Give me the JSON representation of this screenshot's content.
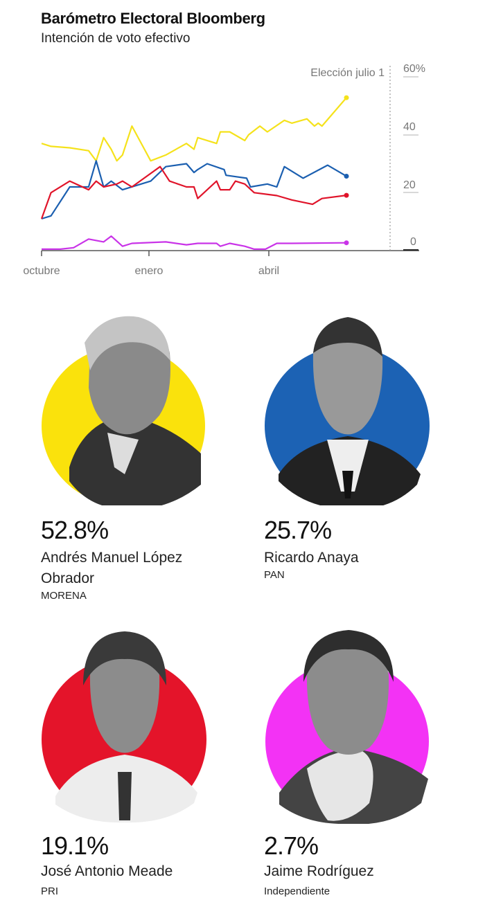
{
  "header": {
    "title": "Barómetro Electoral Bloomberg",
    "subtitle": "Intención de voto efectivo"
  },
  "chart_data": {
    "type": "line",
    "title": "Barómetro Electoral Bloomberg",
    "subtitle": "Intención de voto efectivo",
    "xlabel": "",
    "ylabel": "%",
    "ylim": [
      0,
      60
    ],
    "y_ticks": [
      "0",
      "20",
      "40",
      "60%"
    ],
    "x_ticks": [
      "octubre",
      "enero",
      "abril"
    ],
    "annotation": "Elección julio 1",
    "grid": false,
    "series": [
      {
        "name": "Andrés Manuel López Obrador",
        "color": "#f5e21b",
        "final": 52.8,
        "points": [
          [
            0,
            37
          ],
          [
            5,
            36
          ],
          [
            15,
            35.5
          ],
          [
            25,
            34.5
          ],
          [
            29,
            31
          ],
          [
            33,
            39
          ],
          [
            37,
            35
          ],
          [
            40,
            31
          ],
          [
            43,
            33
          ],
          [
            48,
            43
          ],
          [
            58,
            31
          ],
          [
            66,
            33
          ],
          [
            77,
            37
          ],
          [
            81,
            35
          ],
          [
            83,
            39
          ],
          [
            93,
            37
          ],
          [
            95,
            41
          ],
          [
            100,
            41
          ],
          [
            108,
            38
          ],
          [
            110,
            40
          ],
          [
            116,
            43
          ],
          [
            120,
            41
          ],
          [
            129,
            45
          ],
          [
            133,
            44
          ],
          [
            141,
            45.5
          ],
          [
            145,
            43
          ],
          [
            147,
            44
          ],
          [
            149,
            43
          ],
          [
            162,
            52.8
          ]
        ]
      },
      {
        "name": "Ricardo Anaya",
        "color": "#1b5fb0",
        "final": 25.7,
        "points": [
          [
            0,
            11
          ],
          [
            5,
            12
          ],
          [
            15,
            22
          ],
          [
            25,
            22
          ],
          [
            29,
            31
          ],
          [
            33,
            22
          ],
          [
            37,
            24
          ],
          [
            43,
            21
          ],
          [
            58,
            24
          ],
          [
            66,
            29
          ],
          [
            77,
            30
          ],
          [
            81,
            27
          ],
          [
            83,
            28
          ],
          [
            88,
            30
          ],
          [
            97,
            28
          ],
          [
            98,
            26
          ],
          [
            109,
            25
          ],
          [
            111,
            22
          ],
          [
            120,
            23
          ],
          [
            125,
            22
          ],
          [
            129,
            29
          ],
          [
            139,
            25
          ],
          [
            152,
            29.5
          ],
          [
            156,
            28
          ],
          [
            162,
            25.7
          ]
        ]
      },
      {
        "name": "José Antonio Meade",
        "color": "#e0142a",
        "final": 19.1,
        "points": [
          [
            0,
            11
          ],
          [
            5,
            20
          ],
          [
            15,
            24
          ],
          [
            25,
            21
          ],
          [
            29,
            24
          ],
          [
            33,
            22
          ],
          [
            40,
            23
          ],
          [
            43,
            24
          ],
          [
            48,
            22
          ],
          [
            63,
            29
          ],
          [
            68,
            24
          ],
          [
            77,
            22
          ],
          [
            81,
            22
          ],
          [
            83,
            18
          ],
          [
            93,
            24
          ],
          [
            95,
            21
          ],
          [
            100,
            21
          ],
          [
            103,
            24
          ],
          [
            108,
            23
          ],
          [
            113,
            20
          ],
          [
            125,
            19
          ],
          [
            133,
            17.5
          ],
          [
            144,
            16
          ],
          [
            149,
            18
          ],
          [
            162,
            19.1
          ]
        ]
      },
      {
        "name": "Jaime Rodríguez",
        "color": "#c933e8",
        "final": 2.7,
        "points": [
          [
            0,
            0.5
          ],
          [
            10,
            0.5
          ],
          [
            17,
            1
          ],
          [
            25,
            4
          ],
          [
            33,
            3
          ],
          [
            37,
            5
          ],
          [
            43,
            1.5
          ],
          [
            48,
            2.5
          ],
          [
            66,
            3
          ],
          [
            77,
            2
          ],
          [
            83,
            2.5
          ],
          [
            93,
            2.5
          ],
          [
            95,
            1.5
          ],
          [
            100,
            2.5
          ],
          [
            108,
            1.5
          ],
          [
            113,
            0.5
          ],
          [
            119,
            0.5
          ],
          [
            125,
            2.5
          ],
          [
            133,
            2.5
          ],
          [
            162,
            2.7
          ]
        ]
      }
    ]
  },
  "chart": {
    "annotation": "Elección julio 1",
    "y_ticks": {
      "t60": "60%",
      "t40": "40",
      "t20": "20",
      "t0": "0"
    },
    "x_ticks": {
      "oct": "octubre",
      "ene": "enero",
      "abr": "abril"
    }
  },
  "candidates": [
    {
      "pct": "52.8%",
      "name": "Andrés Manuel López Obrador",
      "party": "MORENA",
      "color": "#fae20c"
    },
    {
      "pct": "25.7%",
      "name": "Ricardo Anaya",
      "party": "PAN",
      "color": "#1c62b4"
    },
    {
      "pct": "19.1%",
      "name": "José Antonio Meade",
      "party": "PRI",
      "color": "#e4142a"
    },
    {
      "pct": "2.7%",
      "name": "Jaime Rodríguez",
      "party": "Independiente",
      "color": "#f332f5"
    }
  ]
}
